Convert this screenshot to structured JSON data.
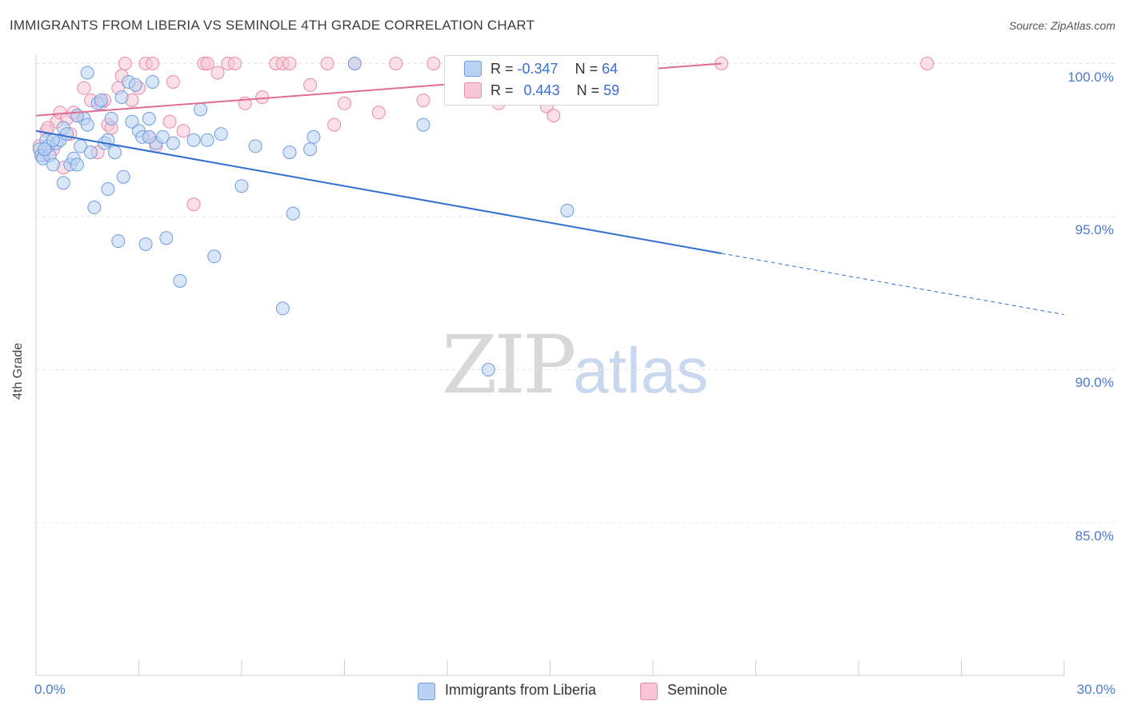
{
  "title": "IMMIGRANTS FROM LIBERIA VS SEMINOLE 4TH GRADE CORRELATION CHART",
  "source": "Source: ZipAtlas.com",
  "watermark": {
    "zip": "ZIP",
    "atlas": "atlas"
  },
  "colors": {
    "blue_fill": "#b9d1f3",
    "blue_stroke": "#6e9de0",
    "blue_line": "#2f6fd1",
    "pink_fill": "#f8c6d6",
    "pink_stroke": "#e88aa8",
    "pink_line": "#e06c96",
    "grid": "#e4e4e4",
    "axis_text": "#4a7bd0"
  },
  "legend": {
    "rows": [
      {
        "r_label": "R =",
        "r_value": "-0.347",
        "n_label": "N =",
        "n_value": "64"
      },
      {
        "r_label": "R =",
        "r_value": "0.443",
        "n_label": "N =",
        "n_value": "59"
      }
    ]
  },
  "chart_data": {
    "type": "scatter",
    "title": "IMMIGRANTS FROM LIBERIA VS SEMINOLE 4TH GRADE CORRELATION CHART",
    "xlabel": "",
    "ylabel": "4th Grade",
    "xlim": [
      0,
      30
    ],
    "ylim": [
      80.5,
      100.5
    ],
    "x_tick_labels": [
      "0.0%",
      "30.0%"
    ],
    "y_ticks": [
      85,
      90,
      95,
      100
    ],
    "y_tick_labels": [
      "85.0%",
      "90.0%",
      "95.0%",
      "100.0%"
    ],
    "series": [
      {
        "name": "Immigrants from Liberia",
        "color": "blue",
        "r": -0.347,
        "n": 64,
        "trend": {
          "x0": 0,
          "y0": 97.8,
          "x1": 20,
          "y1": 93.8,
          "dash_to_x": 30,
          "dash_to_y": 91.8
        },
        "points": [
          [
            0.1,
            97.2
          ],
          [
            0.15,
            97.0
          ],
          [
            0.2,
            96.9
          ],
          [
            0.3,
            97.5
          ],
          [
            0.35,
            97.3
          ],
          [
            0.4,
            97.0
          ],
          [
            0.5,
            96.7
          ],
          [
            0.6,
            97.4
          ],
          [
            0.7,
            97.5
          ],
          [
            0.8,
            97.9
          ],
          [
            0.9,
            97.7
          ],
          [
            1.0,
            96.7
          ],
          [
            1.1,
            96.9
          ],
          [
            1.2,
            96.7
          ],
          [
            1.3,
            97.3
          ],
          [
            1.4,
            98.2
          ],
          [
            1.5,
            98.0
          ],
          [
            1.6,
            97.1
          ],
          [
            1.7,
            95.3
          ],
          [
            1.8,
            98.7
          ],
          [
            1.9,
            98.8
          ],
          [
            2.0,
            97.4
          ],
          [
            2.1,
            95.9
          ],
          [
            2.2,
            98.2
          ],
          [
            2.3,
            97.1
          ],
          [
            2.4,
            94.2
          ],
          [
            2.5,
            98.9
          ],
          [
            2.55,
            96.3
          ],
          [
            2.7,
            99.4
          ],
          [
            2.8,
            98.1
          ],
          [
            2.9,
            99.3
          ],
          [
            3.0,
            97.8
          ],
          [
            3.1,
            97.6
          ],
          [
            3.2,
            94.1
          ],
          [
            3.3,
            98.2
          ],
          [
            3.4,
            99.4
          ],
          [
            3.5,
            97.4
          ],
          [
            3.7,
            97.6
          ],
          [
            3.8,
            94.3
          ],
          [
            4.0,
            97.4
          ],
          [
            4.2,
            92.9
          ],
          [
            4.6,
            97.5
          ],
          [
            4.8,
            98.5
          ],
          [
            5.0,
            97.5
          ],
          [
            5.2,
            93.7
          ],
          [
            5.4,
            97.7
          ],
          [
            6.0,
            96.0
          ],
          [
            6.4,
            97.3
          ],
          [
            7.2,
            92.0
          ],
          [
            7.4,
            97.1
          ],
          [
            7.5,
            95.1
          ],
          [
            8.0,
            97.2
          ],
          [
            8.1,
            97.6
          ],
          [
            9.3,
            100.0
          ],
          [
            11.3,
            98.0
          ],
          [
            13.2,
            90.0
          ],
          [
            15.5,
            95.2
          ],
          [
            0.25,
            97.2
          ],
          [
            1.5,
            99.7
          ],
          [
            0.8,
            96.1
          ],
          [
            3.3,
            97.6
          ],
          [
            1.2,
            98.3
          ],
          [
            0.5,
            97.5
          ],
          [
            2.1,
            97.5
          ]
        ]
      },
      {
        "name": "Seminole",
        "color": "pink",
        "r": 0.443,
        "n": 59,
        "trend": {
          "x0": 0,
          "y0": 98.3,
          "x1": 20,
          "y1": 100.0
        },
        "points": [
          [
            0.1,
            97.3
          ],
          [
            0.2,
            97.0
          ],
          [
            0.3,
            97.8
          ],
          [
            0.5,
            97.2
          ],
          [
            0.6,
            98.1
          ],
          [
            0.7,
            98.4
          ],
          [
            0.8,
            96.6
          ],
          [
            0.9,
            98.2
          ],
          [
            1.0,
            97.7
          ],
          [
            1.2,
            98.3
          ],
          [
            1.4,
            99.2
          ],
          [
            1.6,
            98.8
          ],
          [
            1.8,
            97.1
          ],
          [
            1.9,
            98.7
          ],
          [
            2.0,
            98.8
          ],
          [
            2.1,
            98.0
          ],
          [
            2.2,
            97.9
          ],
          [
            2.4,
            99.2
          ],
          [
            2.5,
            99.6
          ],
          [
            2.6,
            100.0
          ],
          [
            2.8,
            98.8
          ],
          [
            3.0,
            99.2
          ],
          [
            3.2,
            100.0
          ],
          [
            3.3,
            97.6
          ],
          [
            3.4,
            100.0
          ],
          [
            3.5,
            97.3
          ],
          [
            3.9,
            98.1
          ],
          [
            4.0,
            99.4
          ],
          [
            4.3,
            97.8
          ],
          [
            4.6,
            95.4
          ],
          [
            4.9,
            100.0
          ],
          [
            5.0,
            100.0
          ],
          [
            5.3,
            99.7
          ],
          [
            5.6,
            100.0
          ],
          [
            5.8,
            100.0
          ],
          [
            6.1,
            98.7
          ],
          [
            6.6,
            98.9
          ],
          [
            7.0,
            100.0
          ],
          [
            7.2,
            100.0
          ],
          [
            7.4,
            100.0
          ],
          [
            8.0,
            99.3
          ],
          [
            8.5,
            100.0
          ],
          [
            8.7,
            98.0
          ],
          [
            9.0,
            98.7
          ],
          [
            9.3,
            100.0
          ],
          [
            10.0,
            98.4
          ],
          [
            10.5,
            100.0
          ],
          [
            11.3,
            98.8
          ],
          [
            11.6,
            100.0
          ],
          [
            12.3,
            100.0
          ],
          [
            13.5,
            98.7
          ],
          [
            14.3,
            100.0
          ],
          [
            14.9,
            98.6
          ],
          [
            15.1,
            98.3
          ],
          [
            16.5,
            100.0
          ],
          [
            20.0,
            100.0
          ],
          [
            26.0,
            100.0
          ],
          [
            0.35,
            97.9
          ],
          [
            1.1,
            98.4
          ]
        ]
      }
    ]
  },
  "bottom_legend": [
    {
      "label": "Immigrants from Liberia",
      "color": "blue"
    },
    {
      "label": "Seminole",
      "color": "pink"
    }
  ]
}
